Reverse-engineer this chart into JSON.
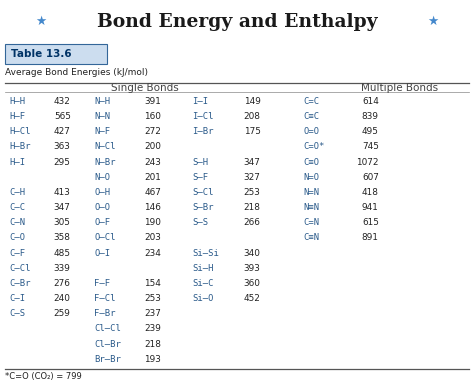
{
  "title": "Bond Energy and Enthalpy",
  "table_label": "Table 13.6",
  "subtitle": "Average Bond Energies (kJ/mol)",
  "footnote": "*C=O (CO₂) = 799",
  "single_bonds_col1": [
    [
      "H—H",
      "432"
    ],
    [
      "H—F",
      "565"
    ],
    [
      "H—Cl",
      "427"
    ],
    [
      "H—Br",
      "363"
    ],
    [
      "H—I",
      "295"
    ],
    [
      "",
      ""
    ],
    [
      "C—H",
      "413"
    ],
    [
      "C—C",
      "347"
    ],
    [
      "C—N",
      "305"
    ],
    [
      "C—O",
      "358"
    ],
    [
      "C—F",
      "485"
    ],
    [
      "C—Cl",
      "339"
    ],
    [
      "C—Br",
      "276"
    ],
    [
      "C—I",
      "240"
    ],
    [
      "C—S",
      "259"
    ]
  ],
  "single_bonds_col2": [
    [
      "N—H",
      "391"
    ],
    [
      "N—N",
      "160"
    ],
    [
      "N—F",
      "272"
    ],
    [
      "N—Cl",
      "200"
    ],
    [
      "N—Br",
      "243"
    ],
    [
      "N—O",
      "201"
    ],
    [
      "O—H",
      "467"
    ],
    [
      "O—O",
      "146"
    ],
    [
      "O—F",
      "190"
    ],
    [
      "O—Cl",
      "203"
    ],
    [
      "O—I",
      "234"
    ],
    [
      "",
      ""
    ],
    [
      "F—F",
      "154"
    ],
    [
      "F—Cl",
      "253"
    ],
    [
      "F—Br",
      "237"
    ],
    [
      "Cl—Cl",
      "239"
    ],
    [
      "Cl—Br",
      "218"
    ],
    [
      "Br—Br",
      "193"
    ]
  ],
  "single_bonds_col3": [
    [
      "I—I",
      "149"
    ],
    [
      "I—Cl",
      "208"
    ],
    [
      "I—Br",
      "175"
    ],
    [
      "",
      ""
    ],
    [
      "S—H",
      "347"
    ],
    [
      "S—F",
      "327"
    ],
    [
      "S—Cl",
      "253"
    ],
    [
      "S—Br",
      "218"
    ],
    [
      "S—S",
      "266"
    ],
    [
      "",
      ""
    ],
    [
      "Si—Si",
      "340"
    ],
    [
      "Si—H",
      "393"
    ],
    [
      "Si—C",
      "360"
    ],
    [
      "Si—O",
      "452"
    ]
  ],
  "multiple_bonds": [
    [
      "C=C",
      "614"
    ],
    [
      "C≡C",
      "839"
    ],
    [
      "O=O",
      "495"
    ],
    [
      "C=O*",
      "745"
    ],
    [
      "C≡O",
      "1072"
    ],
    [
      "N=O",
      "607"
    ],
    [
      "N=N",
      "418"
    ],
    [
      "N≡N",
      "941"
    ],
    [
      "C=N",
      "615"
    ],
    [
      "C≡N",
      "891"
    ]
  ],
  "background_color": "#ffffff",
  "text_color": "#222222",
  "bond_color": "#2a5a8a",
  "title_color": "#1a1a1a",
  "header_color": "#444444",
  "table_label_bg": "#ccddef",
  "table_label_border": "#336699",
  "table_label_text": "#003366",
  "star_color": "#4488cc",
  "line_color": "#777777"
}
